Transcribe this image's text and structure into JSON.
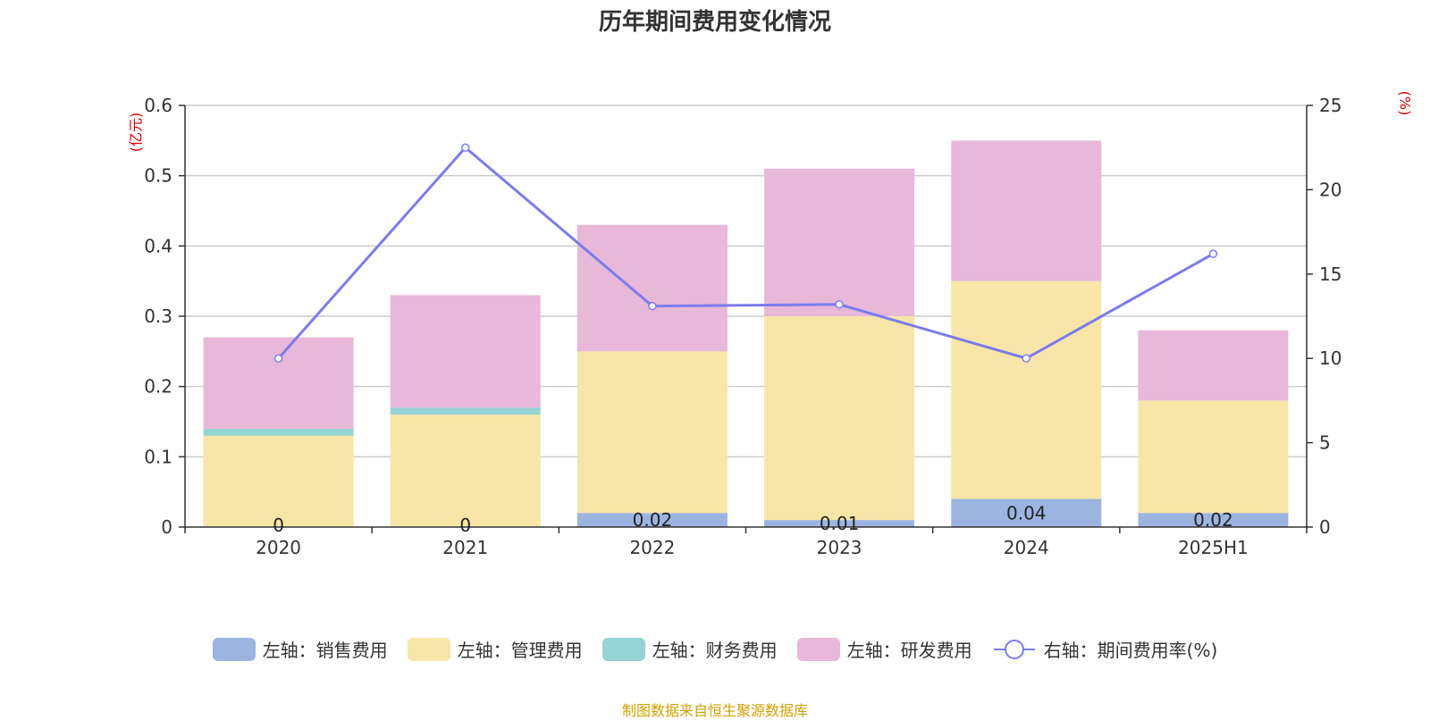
{
  "title": "历年期间费用变化情况",
  "unit_left": "(亿元)",
  "unit_right": "(%)",
  "footer": "制图数据来自恒生聚源数据库",
  "colors": {
    "sales": "#9bb5e0",
    "admin": "#f7e6a8",
    "finance": "#96d3d3",
    "rnd": "#e7b8d8",
    "rate": "#7b7bef",
    "unit": "#e00000",
    "footer": "#d4a000"
  },
  "chart_data": {
    "type": "bar",
    "stacked": true,
    "title": "历年期间费用变化情况",
    "categories": [
      "2020",
      "2021",
      "2022",
      "2023",
      "2024",
      "2025H1"
    ],
    "series": [
      {
        "name": "左轴：销售费用",
        "axis": "left",
        "values": [
          0,
          0,
          0.02,
          0.01,
          0.04,
          0.02
        ],
        "labels": [
          "0",
          "0",
          "0.02",
          "0.01",
          "0.04",
          "0.02"
        ]
      },
      {
        "name": "左轴：管理费用",
        "axis": "left",
        "values": [
          0.13,
          0.16,
          0.23,
          0.29,
          0.31,
          0.16
        ]
      },
      {
        "name": "左轴：财务费用",
        "axis": "left",
        "values": [
          0.01,
          0.01,
          0,
          0,
          0,
          0
        ]
      },
      {
        "name": "左轴：研发费用",
        "axis": "left",
        "values": [
          0.13,
          0.16,
          0.18,
          0.21,
          0.2,
          0.1
        ]
      }
    ],
    "line_series": {
      "name": "右轴：期间费用率(%)",
      "axis": "right",
      "type": "line",
      "values": [
        10,
        22.5,
        13.1,
        13.2,
        10.0,
        16.2
      ]
    },
    "left_axis": {
      "ylim": [
        0,
        0.6
      ],
      "ticks": [
        "0",
        "0.1",
        "0.2",
        "0.3",
        "0.4",
        "0.5",
        "0.6"
      ]
    },
    "right_axis": {
      "ylim": [
        0,
        25
      ],
      "ticks": [
        "0",
        "5",
        "10",
        "15",
        "20",
        "25"
      ]
    },
    "grid": true,
    "legend_position": "bottom"
  }
}
